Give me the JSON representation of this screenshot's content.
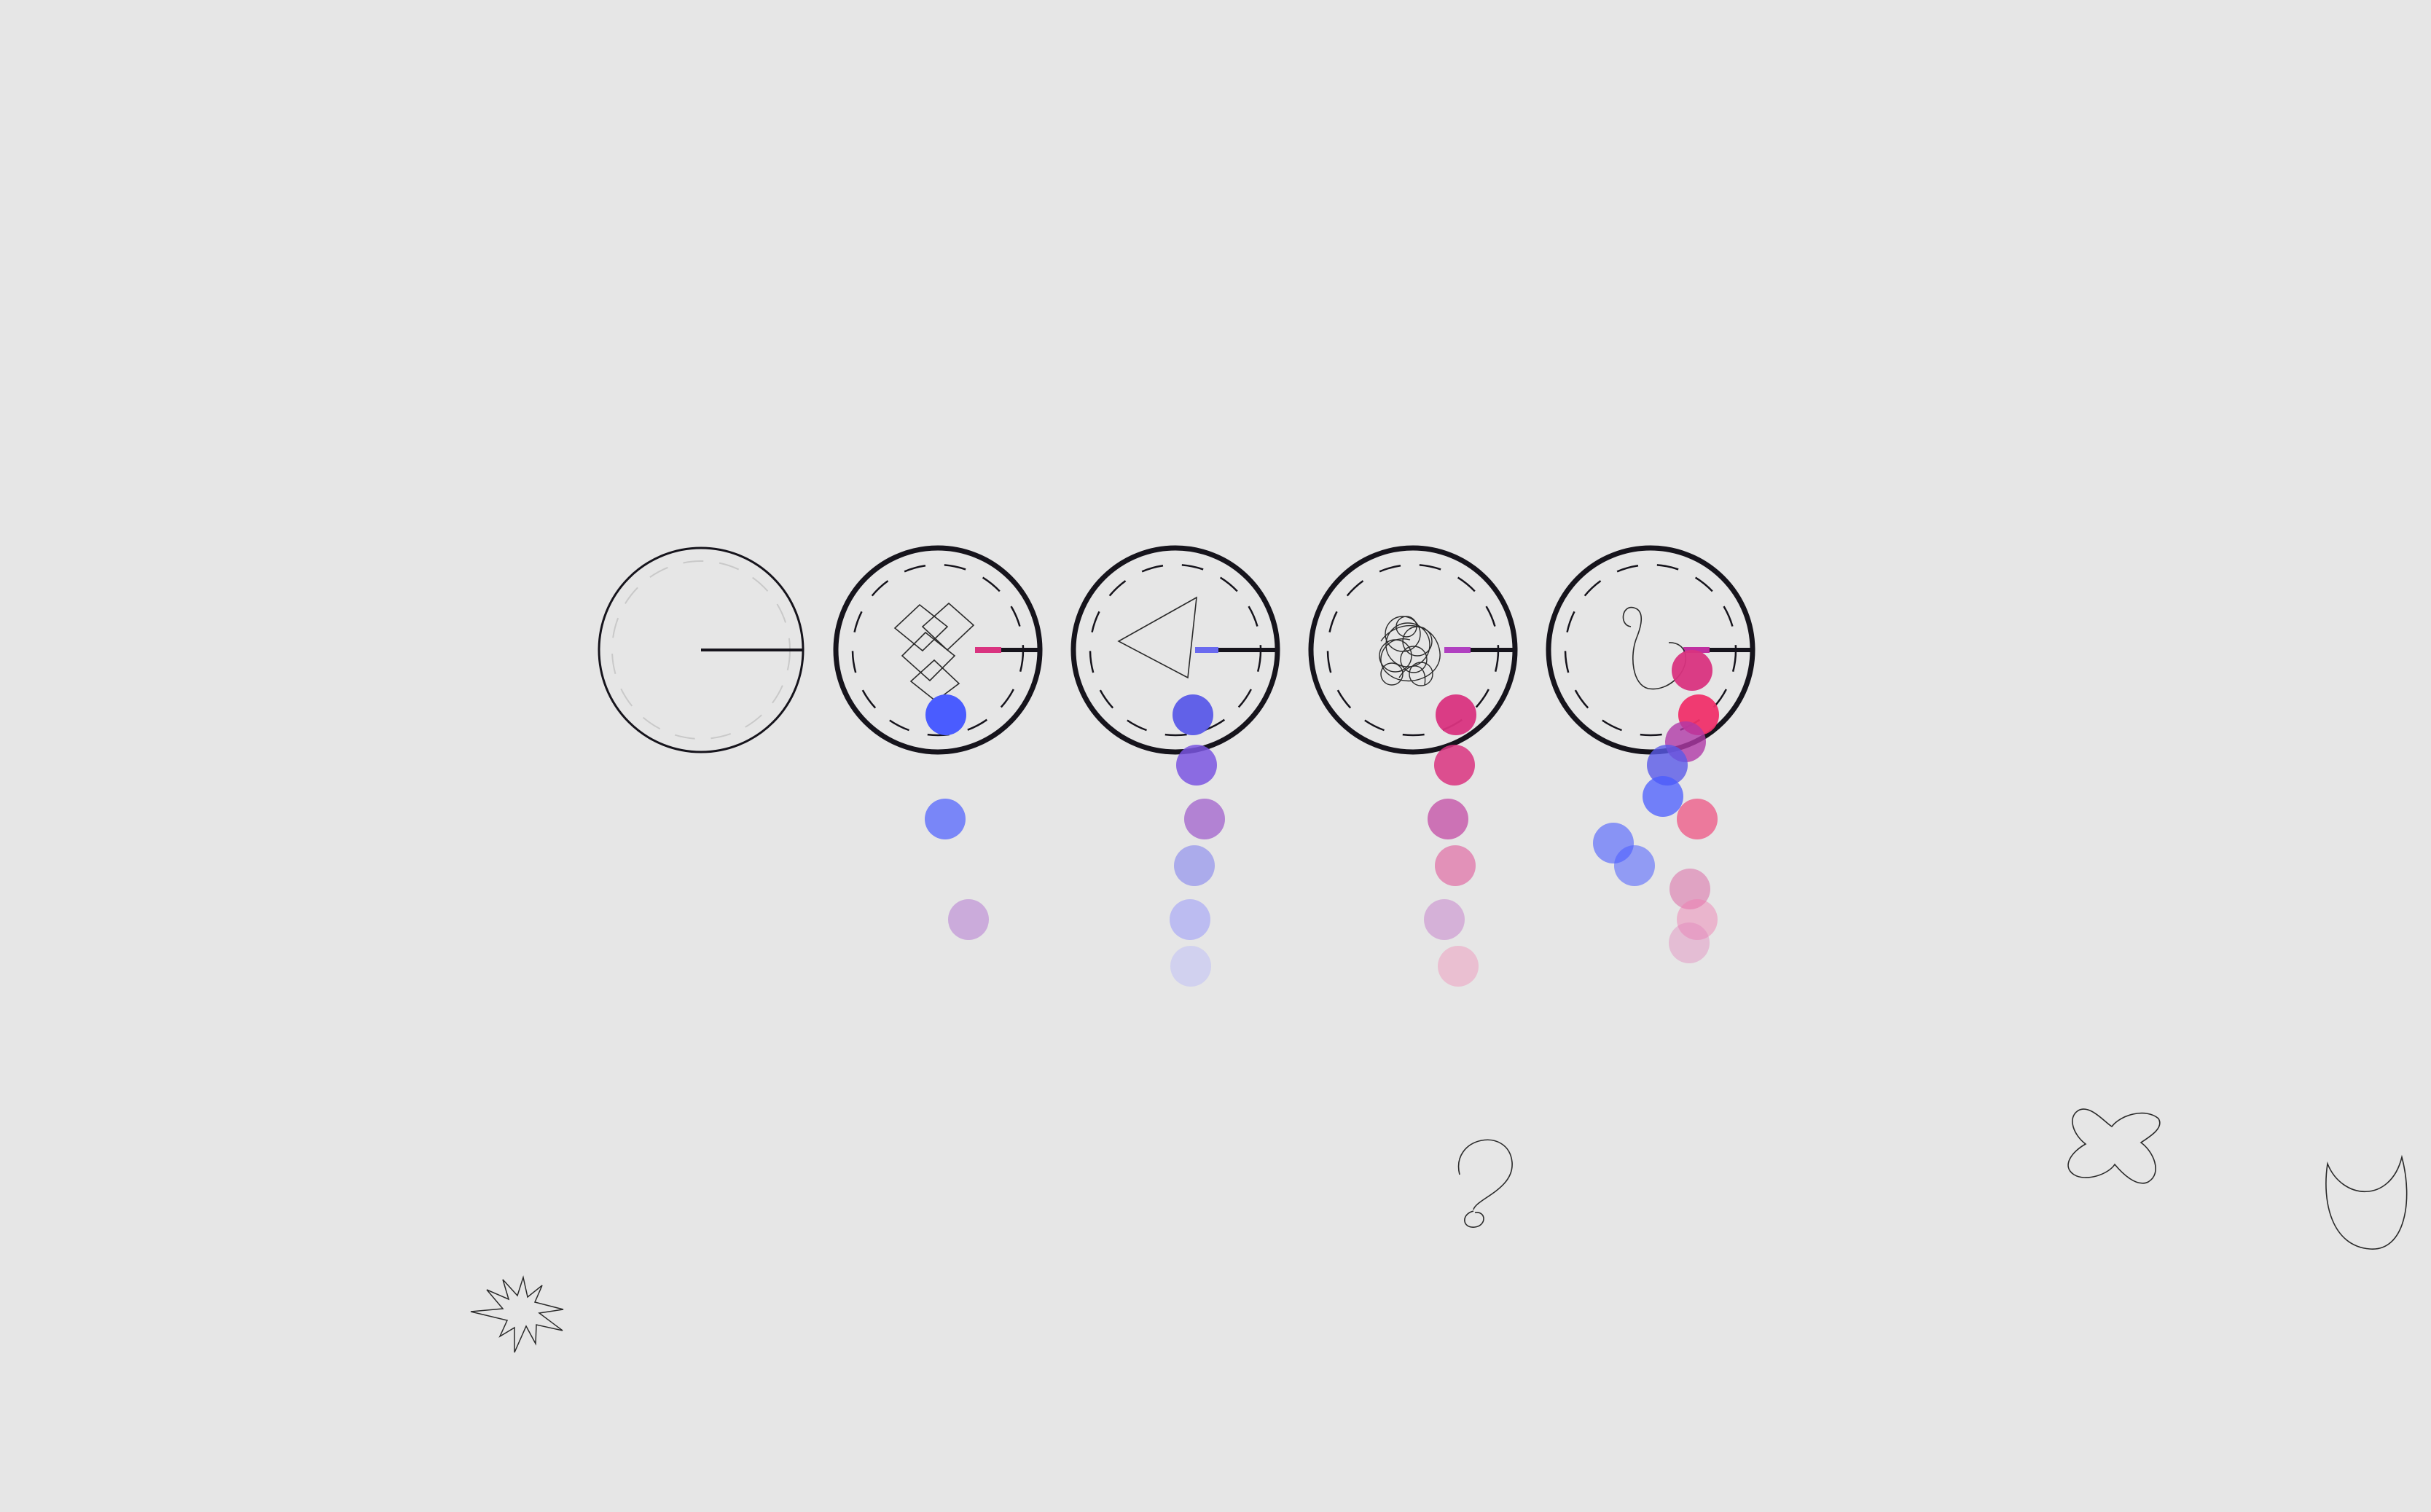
{
  "colors": {
    "background": "#e6e6e6",
    "ink": "#16141c",
    "blue": "#4a5cff",
    "violet": "#7a55e0",
    "purple": "#b070d0",
    "magenta": "#d9337f",
    "pink": "#f0306a",
    "light_pink": "#f3a2c2"
  },
  "dials": [
    {
      "id": "dial-1",
      "state": "empty",
      "icon": "blank-sketch"
    },
    {
      "id": "dial-2",
      "state": "filled",
      "icon": "overlapping-squares-sketch",
      "marker_color": "#d9337f"
    },
    {
      "id": "dial-3",
      "state": "filled",
      "icon": "triangle-sketch",
      "marker_color": "#6a6aef"
    },
    {
      "id": "dial-4",
      "state": "filled",
      "icon": "scribble-sketch",
      "marker_color": "#b040c0"
    },
    {
      "id": "dial-5",
      "state": "filled",
      "icon": "hook-sketch",
      "marker_color": "#c030a0"
    }
  ],
  "doodles": [
    {
      "id": "doodle-star",
      "icon": "starburst-sketch"
    },
    {
      "id": "doodle-question",
      "icon": "question-mark-sketch"
    },
    {
      "id": "doodle-cross",
      "icon": "x-blob-sketch"
    },
    {
      "id": "doodle-cup",
      "icon": "cup-sketch"
    }
  ]
}
